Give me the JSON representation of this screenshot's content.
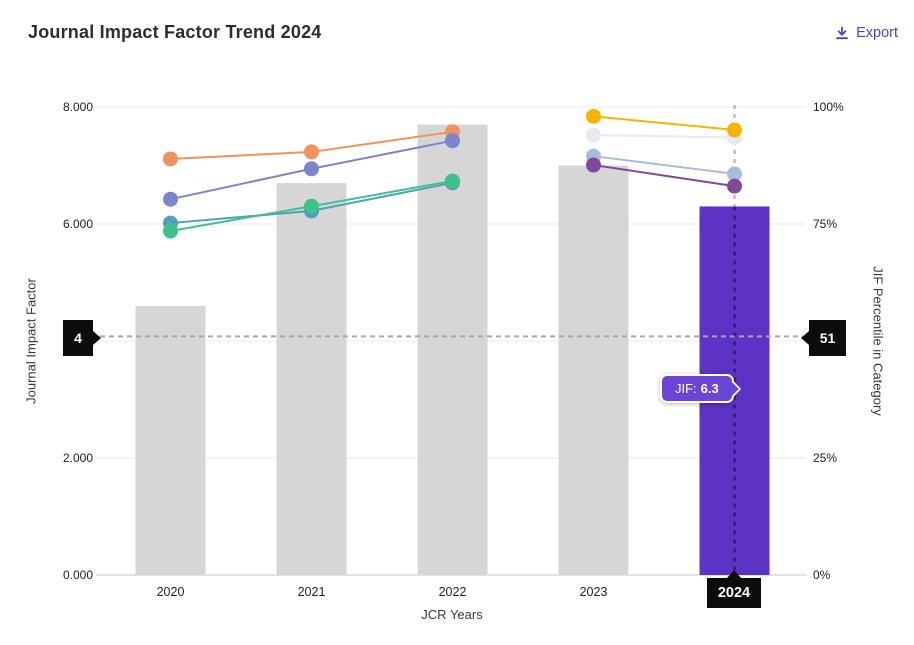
{
  "header": {
    "title": "Journal Impact Factor Trend 2024",
    "export_label": "Export"
  },
  "axes": {
    "x_label": "JCR Years",
    "y_left_label": "Journal Impact Factor",
    "y_right_label": "JIF Percentile in Category",
    "y_left_ticks": [
      "0.000",
      "2.000",
      "4.000",
      "6.000",
      "8.000"
    ],
    "y_left_values": [
      0,
      2,
      4,
      6,
      8
    ],
    "y_right_ticks": [
      "0%",
      "25%",
      "75%",
      "100%"
    ],
    "y_right_values": [
      0,
      25,
      75,
      100
    ],
    "y_left_range": [
      0,
      8
    ],
    "y_right_range": [
      0,
      100
    ],
    "grid": true
  },
  "chart_data": {
    "type": "bar+line",
    "categories": [
      "2020",
      "2021",
      "2022",
      "2023",
      "2024"
    ],
    "bars": {
      "name": "Journal Impact Factor",
      "values": [
        4.6,
        6.7,
        7.7,
        7.0,
        6.3
      ],
      "colors": [
        "#d6d6d6",
        "#d6d6d6",
        "#d6d6d6",
        "#d6d6d6",
        "#5c33c4"
      ]
    },
    "lines": [
      {
        "name": "category-trend-orange",
        "color": "#f2905e",
        "x": [
          "2020",
          "2021",
          "2022"
        ],
        "y": [
          88.9,
          90.4,
          94.7
        ]
      },
      {
        "name": "category-trend-indigo",
        "color": "#7c85cc",
        "x": [
          "2020",
          "2021",
          "2022"
        ],
        "y": [
          80.3,
          86.8,
          92.8
        ]
      },
      {
        "name": "category-trend-teal",
        "color": "#4f9fbd",
        "x": [
          "2020",
          "2021",
          "2022"
        ],
        "y": [
          75.2,
          77.8,
          83.8
        ]
      },
      {
        "name": "category-trend-green",
        "color": "#3fc08d",
        "x": [
          "2020",
          "2021",
          "2022"
        ],
        "y": [
          73.5,
          78.8,
          84.2
        ]
      },
      {
        "name": "category-trend-lightgray",
        "color": "#e8e8f0",
        "x": [
          "2023",
          "2024"
        ],
        "y": [
          94.0,
          93.5
        ]
      },
      {
        "name": "category-trend-yellow",
        "color": "#f8b301",
        "x": [
          "2023",
          "2024"
        ],
        "y": [
          98.0,
          95.1
        ]
      },
      {
        "name": "category-trend-periwinkle",
        "color": "#aabdd8",
        "x": [
          "2023",
          "2024"
        ],
        "y": [
          89.5,
          85.7
        ]
      },
      {
        "name": "category-trend-purple",
        "color": "#7f4a9b",
        "x": [
          "2023",
          "2024"
        ],
        "y": [
          87.6,
          83.1
        ]
      }
    ]
  },
  "annotations": {
    "jif_percentile_line": {
      "percentile": 51,
      "left_tag": "4",
      "right_tag": "51"
    },
    "year_line": {
      "year": "2024",
      "tag": "2024"
    },
    "tooltip": {
      "label": "JIF:",
      "value": "6.3"
    }
  },
  "colors": {
    "accent_purple_bar": "#5c33c4",
    "gray_bar": "#d6d6d6",
    "export_link": "#4b3fc8",
    "tag_background": "#0d0d0d",
    "tooltip_background": "#6b46d4",
    "dashed_line": "#a8a8a8",
    "gridline": "#eaeaea"
  }
}
